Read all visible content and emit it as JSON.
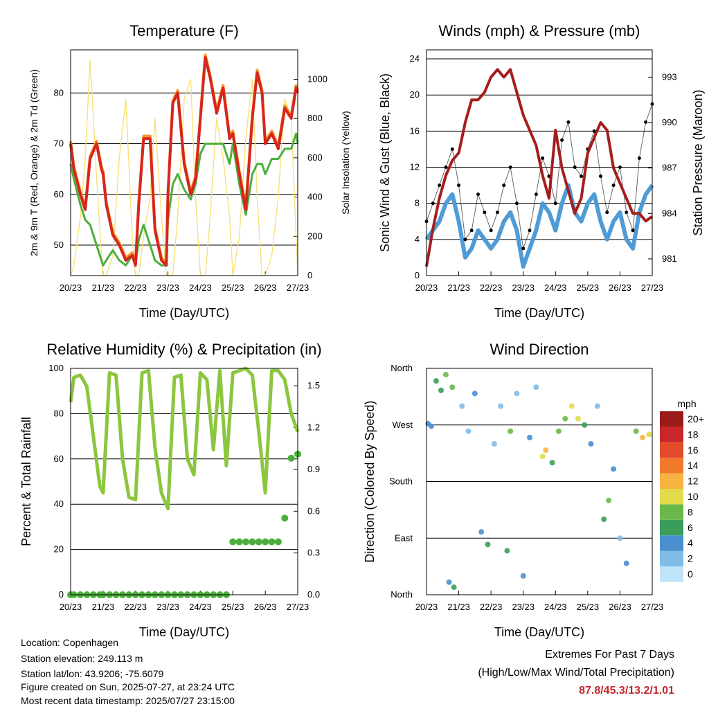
{
  "colors": {
    "temp_2m": "#d7261e",
    "temp_9m": "#f39a2a",
    "dewpoint": "#4caf3c",
    "solar": "#f7e07a",
    "gust": "#000000",
    "wind": "#4f9bd6",
    "pressure": "#a51d1d",
    "rh": "#8cc63f",
    "precip": "#4caf3c",
    "extremes": "#c0282d"
  },
  "x_ticks": [
    "20/23",
    "21/23",
    "22/23",
    "23/23",
    "24/23",
    "25/23",
    "26/23",
    "27/23"
  ],
  "footer": {
    "location": "Location: Copenhagen",
    "elevation": "Station elevation: 249.113 m",
    "latlon": "Station lat/lon: 43.9206; -75.6079",
    "created": "Figure created on Sun, 2025-07-27, at 23:24 UTC",
    "recent": "Most recent data timestamp: 2025/07/27 23:15:00"
  },
  "extremes": {
    "title": "Extremes For Past 7 Days",
    "subtitle": "(High/Low/Max Wind/Total Precipitation)",
    "values": "87.8/45.3/13.2/1.01"
  },
  "chart_data": [
    {
      "id": "temperature",
      "type": "line",
      "title": "Temperature (F)",
      "xlabel": "Time (Day/UTC)",
      "ylabel": "2m & 9m T (Red, Orange) & 2m Td (Green)",
      "y2label": "Solar Insolation (Yellow)",
      "ylim": [
        44,
        88.5
      ],
      "y_ticks": [
        50,
        60,
        70,
        80
      ],
      "y2lim": [
        0,
        1150
      ],
      "y2_ticks": [
        0,
        200,
        400,
        600,
        800,
        1000
      ],
      "x": [
        0,
        0.1,
        0.3,
        0.45,
        0.6,
        0.8,
        0.95,
        1.0,
        1.1,
        1.3,
        1.5,
        1.7,
        1.9,
        2.0,
        2.1,
        2.25,
        2.45,
        2.6,
        2.8,
        2.95,
        3.0,
        3.15,
        3.3,
        3.5,
        3.7,
        3.85,
        4.0,
        4.15,
        4.3,
        4.5,
        4.7,
        4.9,
        5.0,
        5.2,
        5.4,
        5.6,
        5.75,
        5.9,
        6.0,
        6.2,
        6.4,
        6.6,
        6.8,
        6.95,
        7.0
      ],
      "series": [
        {
          "name": "2m T",
          "values": [
            70,
            65,
            60,
            57,
            67,
            70,
            65,
            64,
            58,
            52,
            50,
            47,
            48,
            46,
            58,
            71,
            71,
            53,
            47,
            46,
            60,
            78,
            80,
            66,
            60,
            63,
            75,
            87,
            83,
            76,
            81,
            71,
            72,
            64,
            57,
            75,
            84,
            80,
            70,
            72,
            69,
            77,
            75,
            81,
            80
          ]
        },
        {
          "name": "9m T",
          "values": [
            70.5,
            65.5,
            60.5,
            57.5,
            67.5,
            70.5,
            65.5,
            64.5,
            58.5,
            52.5,
            50.5,
            47.5,
            48.5,
            46.5,
            58.5,
            71.5,
            71.5,
            53.5,
            47.5,
            46.5,
            60.5,
            78.5,
            80.5,
            66.5,
            60.5,
            63.5,
            75.5,
            87.5,
            83.5,
            76.5,
            81.5,
            71.5,
            72.5,
            64.5,
            57.5,
            75.5,
            84.5,
            80.5,
            70.5,
            72.5,
            69.5,
            77.5,
            75.5,
            81.5,
            80.5
          ]
        },
        {
          "name": "2m Td",
          "values": [
            66,
            63,
            58,
            55,
            54,
            50,
            47,
            46,
            47,
            49,
            47,
            46,
            48,
            46,
            51,
            54,
            50,
            47,
            46,
            46,
            55,
            62,
            64,
            61,
            59,
            62,
            68,
            70,
            70,
            70,
            70,
            66,
            70,
            62,
            56,
            64,
            66,
            66,
            64,
            67,
            67,
            69,
            69,
            72,
            70
          ]
        },
        {
          "name": "Solar",
          "values": [
            0,
            50,
            300,
            600,
            1100,
            500,
            100,
            0,
            0,
            100,
            600,
            900,
            200,
            0,
            0,
            200,
            400,
            800,
            300,
            0,
            0,
            0,
            300,
            900,
            1000,
            400,
            0,
            0,
            300,
            800,
            600,
            300,
            0,
            200,
            700,
            1000,
            400,
            0,
            0,
            100,
            400,
            900,
            800,
            200,
            0
          ]
        }
      ]
    },
    {
      "id": "winds",
      "type": "line",
      "title": "Winds (mph) & Pressure (mb)",
      "xlabel": "Time (Day/UTC)",
      "ylabel": "Sonic Wind & Gust (Blue, Black)",
      "y2label": "Station Pressure (Maroon)",
      "ylim": [
        0,
        25
      ],
      "y_ticks": [
        0,
        4,
        8,
        12,
        16,
        20,
        24
      ],
      "y2lim": [
        979.9,
        994.8
      ],
      "y2_ticks": [
        981,
        984,
        987,
        990,
        993
      ],
      "x": [
        0,
        0.2,
        0.4,
        0.6,
        0.8,
        1.0,
        1.2,
        1.4,
        1.6,
        1.8,
        2.0,
        2.2,
        2.4,
        2.6,
        2.8,
        3.0,
        3.2,
        3.4,
        3.6,
        3.8,
        4.0,
        4.2,
        4.4,
        4.6,
        4.8,
        5.0,
        5.2,
        5.4,
        5.6,
        5.8,
        6.0,
        6.2,
        6.4,
        6.6,
        6.8,
        7.0
      ],
      "series": [
        {
          "name": "Gust",
          "values": [
            6,
            8,
            10,
            12,
            14,
            10,
            4,
            5,
            9,
            7,
            5,
            7,
            10,
            12,
            8,
            3,
            5,
            9,
            13,
            11,
            8,
            15,
            17,
            12,
            11,
            14,
            16,
            11,
            7,
            10,
            12,
            7,
            5,
            13,
            17,
            19
          ]
        },
        {
          "name": "Sonic Wind",
          "values": [
            4,
            5,
            6,
            8,
            9,
            6,
            2,
            3,
            5,
            4,
            3,
            4,
            6,
            7,
            5,
            1,
            3,
            5,
            8,
            7,
            5,
            8,
            10,
            7,
            6,
            8,
            9,
            6,
            4,
            6,
            7,
            4,
            3,
            7,
            9,
            10
          ]
        },
        {
          "name": "Station Pressure",
          "values": [
            980.5,
            983,
            985,
            986.5,
            987.5,
            988,
            990,
            991.5,
            991.5,
            992,
            993,
            993.5,
            993,
            993.5,
            992,
            990.5,
            989.5,
            988.5,
            986.5,
            985,
            989.5,
            987,
            985.5,
            984,
            985,
            988,
            989,
            990,
            989.5,
            987,
            986,
            985,
            984,
            984,
            983.5,
            983.8
          ]
        }
      ]
    },
    {
      "id": "rh-precip",
      "type": "line",
      "title": "Relative Humidity (%) & Precipitation (in)",
      "xlabel": "Time (Day/UTC)",
      "ylabel": "Percent & Total Rainfall",
      "ylim": [
        0,
        100
      ],
      "y_ticks": [
        0,
        20,
        40,
        60,
        80,
        100
      ],
      "y2lim": [
        0,
        1.625
      ],
      "y2_ticks": [
        "0.0",
        "0.3",
        "0.6",
        "0.9",
        "1.2",
        "1.5"
      ],
      "x": [
        0,
        0.1,
        0.3,
        0.5,
        0.7,
        0.9,
        1.0,
        1.2,
        1.4,
        1.6,
        1.8,
        2.0,
        2.2,
        2.4,
        2.6,
        2.8,
        3.0,
        3.2,
        3.4,
        3.6,
        3.8,
        4.0,
        4.2,
        4.4,
        4.6,
        4.8,
        5.0,
        5.2,
        5.4,
        5.6,
        5.8,
        6.0,
        6.2,
        6.4,
        6.6,
        6.8,
        7.0
      ],
      "series": [
        {
          "name": "RH",
          "values": [
            85,
            96,
            97,
            92,
            70,
            48,
            45,
            98,
            97,
            60,
            43,
            42,
            98,
            99,
            65,
            45,
            38,
            96,
            97,
            60,
            53,
            98,
            95,
            64,
            99,
            57,
            98,
            99,
            100,
            97,
            72,
            45,
            99,
            99,
            95,
            80,
            72
          ]
        },
        {
          "name": "Precipitation",
          "values": [
            0,
            0,
            0,
            0,
            0,
            0,
            0,
            0,
            0,
            0,
            0,
            0,
            0,
            0,
            0,
            0,
            0,
            0,
            0,
            0,
            0,
            0,
            0,
            0,
            0,
            0,
            0.38,
            0.38,
            0.38,
            0.38,
            0.38,
            0.38,
            0.38,
            0.38,
            0.55,
            0.98,
            1.01
          ]
        }
      ]
    },
    {
      "id": "wind-direction",
      "type": "scatter",
      "title": "Wind Direction",
      "xlabel": "Time (Day/UTC)",
      "ylabel": "Direction (Colored By Speed)",
      "y_tick_labels": [
        "North",
        "East",
        "South",
        "West",
        "North"
      ],
      "ylim": [
        0,
        360
      ],
      "colorbar_title": "mph",
      "colorbar_labels": [
        "0",
        "2",
        "4",
        "6",
        "8",
        "10",
        "12",
        "14",
        "16",
        "18",
        "20+"
      ],
      "colorbar_colors": [
        "#bfe4f7",
        "#7fbde8",
        "#4a8fcf",
        "#3a9e5a",
        "#6ab84a",
        "#e0dc4a",
        "#f7b342",
        "#f07a2c",
        "#e34b2a",
        "#c8262a",
        "#9b1a1a"
      ],
      "points": [
        {
          "x": 0.05,
          "y": 272,
          "s": 4
        },
        {
          "x": 0.15,
          "y": 268,
          "s": 3
        },
        {
          "x": 0.3,
          "y": 340,
          "s": 5
        },
        {
          "x": 0.45,
          "y": 325,
          "s": 6
        },
        {
          "x": 0.6,
          "y": 350,
          "s": 7
        },
        {
          "x": 0.8,
          "y": 330,
          "s": 8
        },
        {
          "x": 0.7,
          "y": 20,
          "s": 4
        },
        {
          "x": 0.85,
          "y": 12,
          "s": 5
        },
        {
          "x": 1.1,
          "y": 300,
          "s": 2
        },
        {
          "x": 1.3,
          "y": 260,
          "s": 1
        },
        {
          "x": 1.5,
          "y": 320,
          "s": 3
        },
        {
          "x": 1.7,
          "y": 100,
          "s": 4
        },
        {
          "x": 1.9,
          "y": 80,
          "s": 5
        },
        {
          "x": 2.1,
          "y": 240,
          "s": 2
        },
        {
          "x": 2.3,
          "y": 300,
          "s": 1
        },
        {
          "x": 2.5,
          "y": 70,
          "s": 5
        },
        {
          "x": 2.6,
          "y": 260,
          "s": 7
        },
        {
          "x": 2.8,
          "y": 320,
          "s": 2
        },
        {
          "x": 3.0,
          "y": 30,
          "s": 3
        },
        {
          "x": 3.2,
          "y": 250,
          "s": 4
        },
        {
          "x": 3.4,
          "y": 330,
          "s": 1
        },
        {
          "x": 3.6,
          "y": 220,
          "s": 9
        },
        {
          "x": 3.7,
          "y": 230,
          "s": 11
        },
        {
          "x": 3.9,
          "y": 210,
          "s": 6
        },
        {
          "x": 4.1,
          "y": 260,
          "s": 8
        },
        {
          "x": 4.3,
          "y": 280,
          "s": 7
        },
        {
          "x": 4.5,
          "y": 300,
          "s": 10
        },
        {
          "x": 4.7,
          "y": 280,
          "s": 9
        },
        {
          "x": 4.9,
          "y": 270,
          "s": 5
        },
        {
          "x": 5.1,
          "y": 240,
          "s": 4
        },
        {
          "x": 5.3,
          "y": 300,
          "s": 1
        },
        {
          "x": 5.5,
          "y": 120,
          "s": 5
        },
        {
          "x": 5.65,
          "y": 150,
          "s": 7
        },
        {
          "x": 5.8,
          "y": 200,
          "s": 3
        },
        {
          "x": 6.0,
          "y": 90,
          "s": 2
        },
        {
          "x": 6.2,
          "y": 50,
          "s": 3
        },
        {
          "x": 6.5,
          "y": 260,
          "s": 8
        },
        {
          "x": 6.7,
          "y": 250,
          "s": 11
        },
        {
          "x": 6.9,
          "y": 255,
          "s": 9
        }
      ]
    }
  ]
}
